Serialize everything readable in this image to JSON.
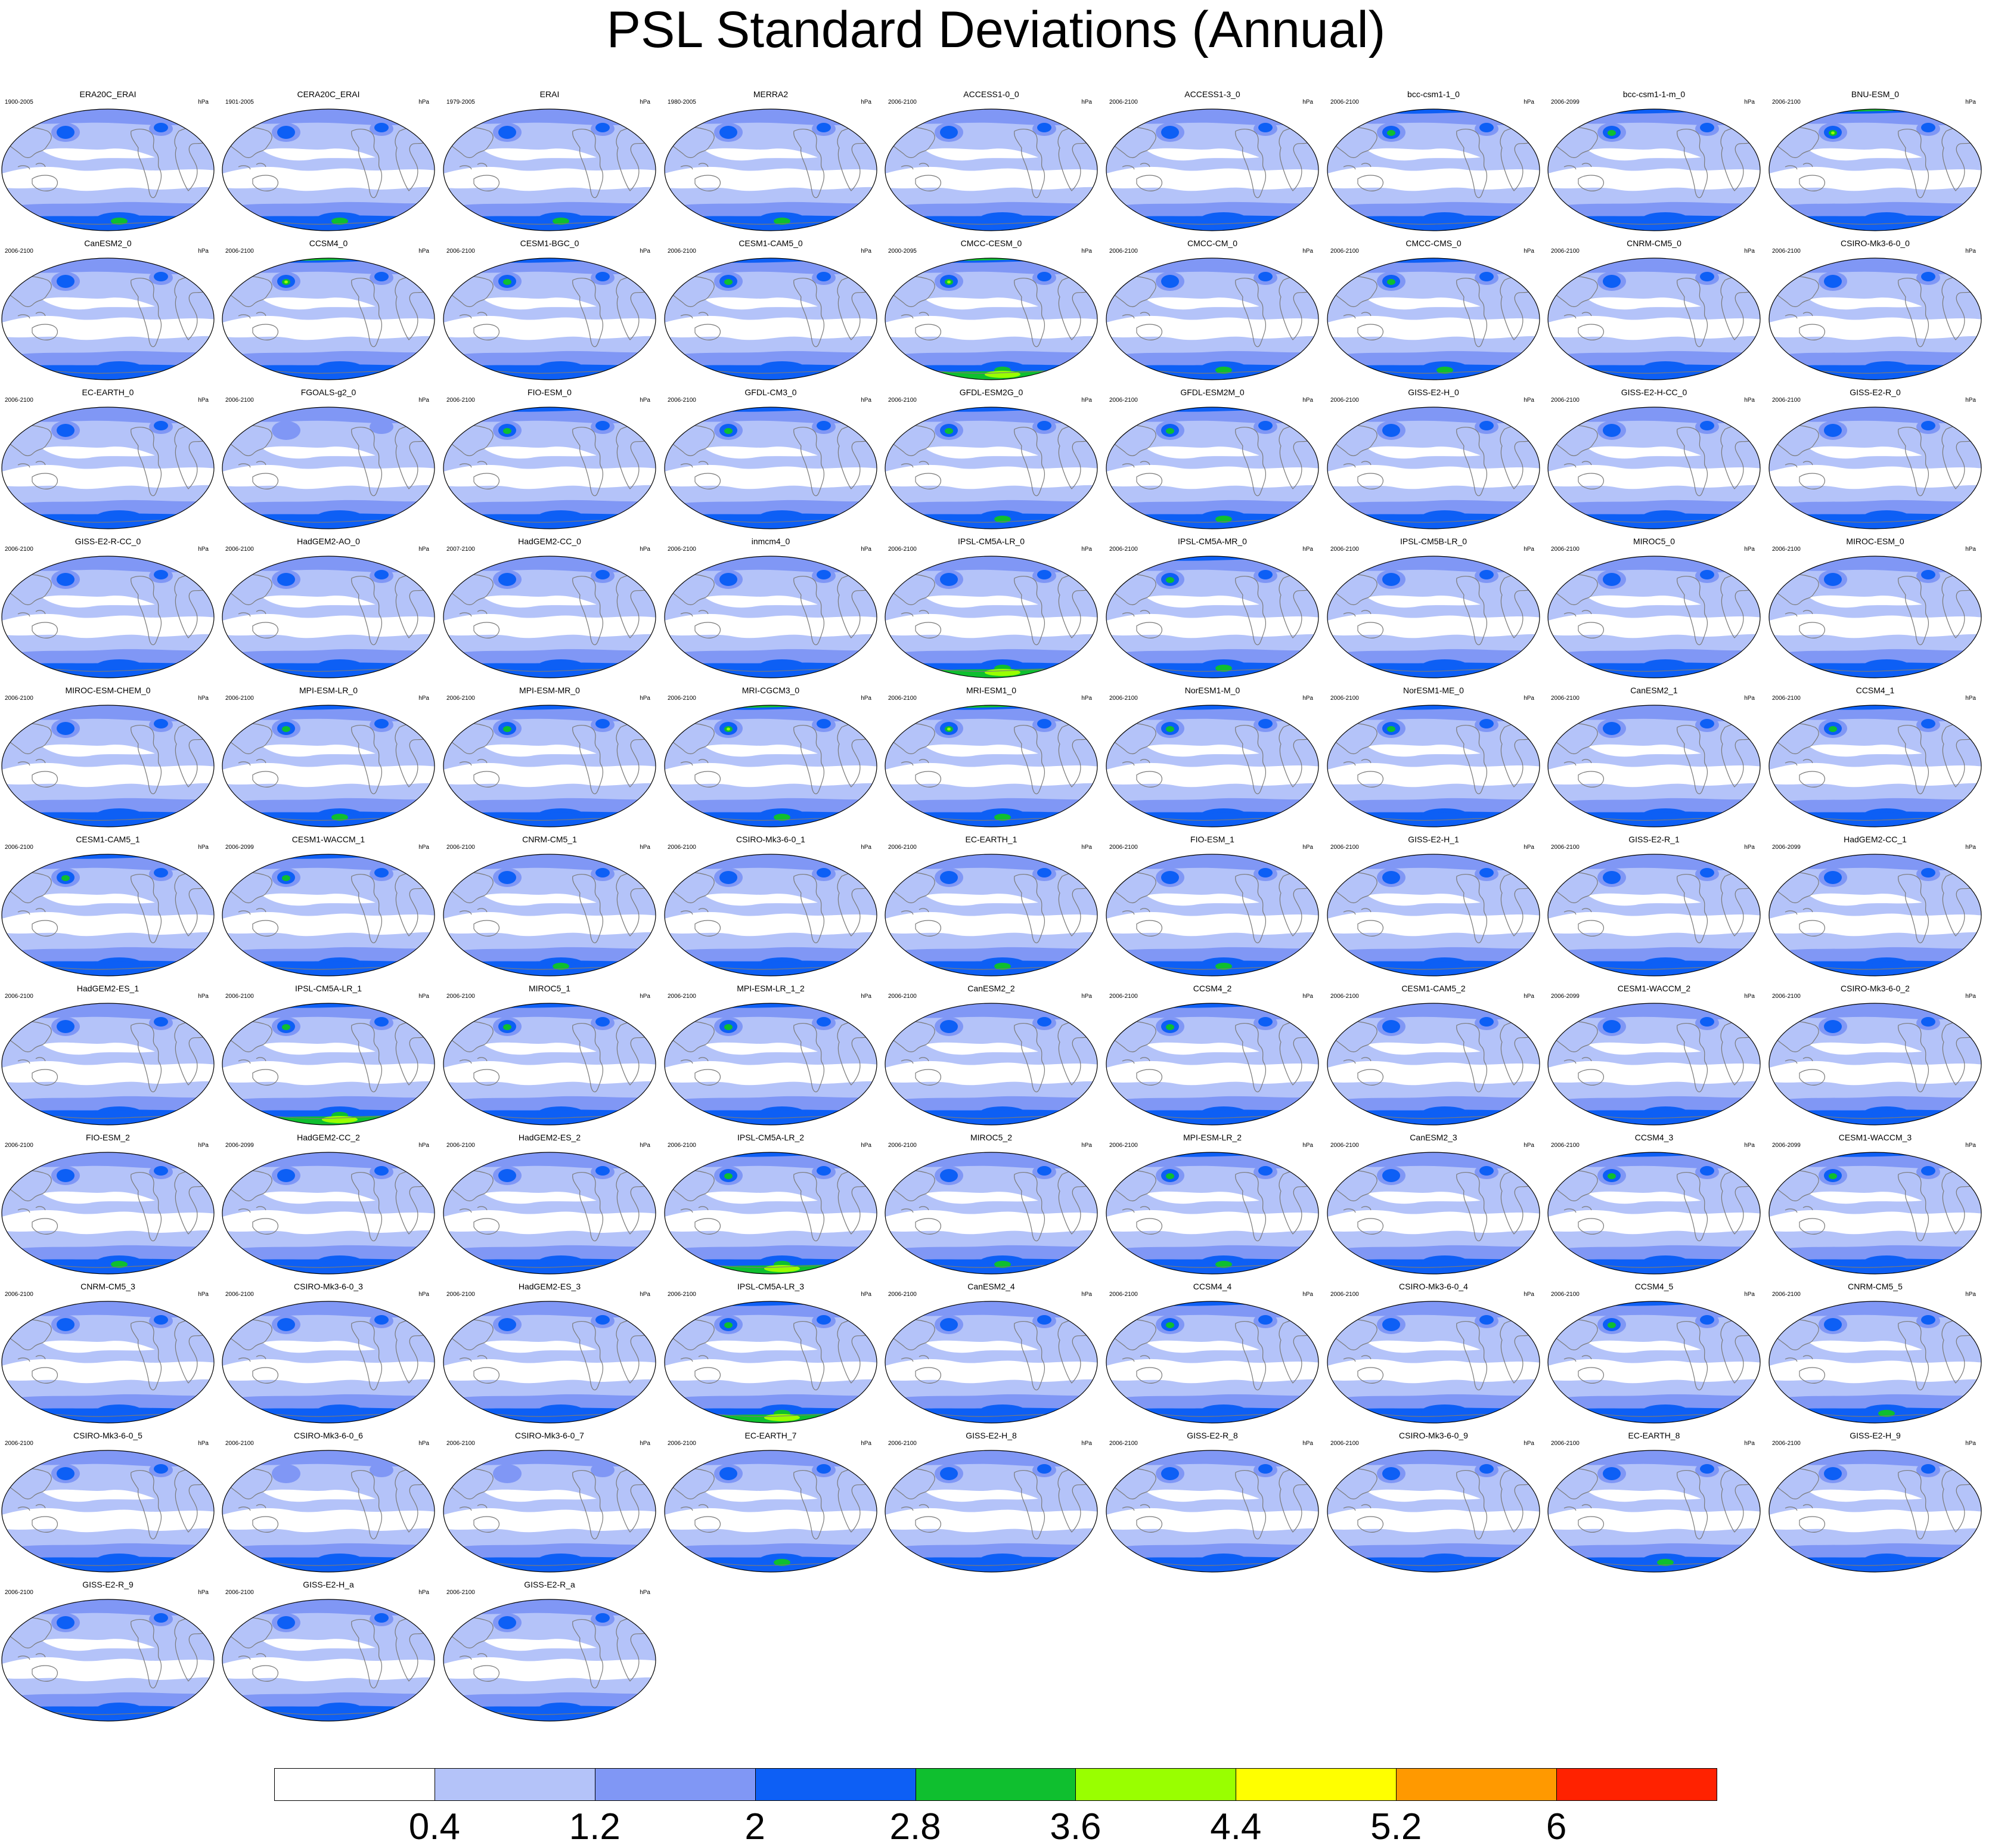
{
  "title": "PSL Standard Deviations (Annual)",
  "units": "hPa",
  "colorbar": {
    "colors": [
      "#ffffff",
      "#b4c3f9",
      "#8097f5",
      "#0d5ff5",
      "#0fbf2f",
      "#99ff00",
      "#ffff00",
      "#ff9900",
      "#ff2200"
    ],
    "labels": [
      "0.4",
      "1.2",
      "2",
      "2.8",
      "3.6",
      "4.4",
      "5.2",
      "6"
    ]
  },
  "panels": [
    {
      "name": "ERA20C_ERAI",
      "years": "1900-2005",
      "nh": 2,
      "sh": 3
    },
    {
      "name": "CERA20C_ERAI",
      "years": "1901-2005",
      "nh": 2,
      "sh": 3
    },
    {
      "name": "ERAI",
      "years": "1979-2005",
      "nh": 2,
      "sh": 3
    },
    {
      "name": "MERRA2",
      "years": "1980-2005",
      "nh": 2,
      "sh": 3
    },
    {
      "name": "ACCESS1-0_0",
      "years": "2006-2100",
      "nh": 2,
      "sh": 2
    },
    {
      "name": "ACCESS1-3_0",
      "years": "2006-2100",
      "nh": 2,
      "sh": 2
    },
    {
      "name": "bcc-csm1-1_0",
      "years": "2006-2100",
      "nh": 3,
      "sh": 2
    },
    {
      "name": "bcc-csm1-1-m_0",
      "years": "2006-2099",
      "nh": 3,
      "sh": 2
    },
    {
      "name": "BNU-ESM_0",
      "years": "2006-2100",
      "nh": 4,
      "sh": 2
    },
    {
      "name": "CanESM2_0",
      "years": "2006-2100",
      "nh": 2,
      "sh": 2
    },
    {
      "name": "CCSM4_0",
      "years": "2006-2100",
      "nh": 4,
      "sh": 2
    },
    {
      "name": "CESM1-BGC_0",
      "years": "2006-2100",
      "nh": 3,
      "sh": 2
    },
    {
      "name": "CESM1-CAM5_0",
      "years": "2006-2100",
      "nh": 3,
      "sh": 2
    },
    {
      "name": "CMCC-CESM_0",
      "years": "2000-2095",
      "nh": 4,
      "sh": 4
    },
    {
      "name": "CMCC-CM_0",
      "years": "2006-2100",
      "nh": 2,
      "sh": 3
    },
    {
      "name": "CMCC-CMS_0",
      "years": "2006-2100",
      "nh": 3,
      "sh": 3
    },
    {
      "name": "CNRM-CM5_0",
      "years": "2006-2100",
      "nh": 2,
      "sh": 2
    },
    {
      "name": "CSIRO-Mk3-6-0_0",
      "years": "2006-2100",
      "nh": 2,
      "sh": 2
    },
    {
      "name": "EC-EARTH_0",
      "years": "2006-2100",
      "nh": 2,
      "sh": 2
    },
    {
      "name": "FGOALS-g2_0",
      "years": "2006-2100",
      "nh": 1,
      "sh": 1
    },
    {
      "name": "FIO-ESM_0",
      "years": "2006-2100",
      "nh": 3,
      "sh": 2
    },
    {
      "name": "GFDL-CM3_0",
      "years": "2006-2100",
      "nh": 3,
      "sh": 2
    },
    {
      "name": "GFDL-ESM2G_0",
      "years": "2006-2100",
      "nh": 3,
      "sh": 3
    },
    {
      "name": "GFDL-ESM2M_0",
      "years": "2006-2100",
      "nh": 3,
      "sh": 3
    },
    {
      "name": "GISS-E2-H_0",
      "years": "2006-2100",
      "nh": 2,
      "sh": 2
    },
    {
      "name": "GISS-E2-H-CC_0",
      "years": "2006-2100",
      "nh": 2,
      "sh": 2
    },
    {
      "name": "GISS-E2-R_0",
      "years": "2006-2100",
      "nh": 2,
      "sh": 2
    },
    {
      "name": "GISS-E2-R-CC_0",
      "years": "2006-2100",
      "nh": 2,
      "sh": 1
    },
    {
      "name": "HadGEM2-AO_0",
      "years": "2006-2100",
      "nh": 2,
      "sh": 1
    },
    {
      "name": "HadGEM2-CC_0",
      "years": "2007-2100",
      "nh": 2,
      "sh": 2
    },
    {
      "name": "inmcm4_0",
      "years": "2006-2100",
      "nh": 2,
      "sh": 1
    },
    {
      "name": "IPSL-CM5A-LR_0",
      "years": "2006-2100",
      "nh": 2,
      "sh": 4
    },
    {
      "name": "IPSL-CM5A-MR_0",
      "years": "2006-2100",
      "nh": 3,
      "sh": 3
    },
    {
      "name": "IPSL-CM5B-LR_0",
      "years": "2006-2100",
      "nh": 2,
      "sh": 2
    },
    {
      "name": "MIROC5_0",
      "years": "2006-2100",
      "nh": 2,
      "sh": 2
    },
    {
      "name": "MIROC-ESM_0",
      "years": "2006-2100",
      "nh": 2,
      "sh": 1
    },
    {
      "name": "MIROC-ESM-CHEM_0",
      "years": "2006-2100",
      "nh": 2,
      "sh": 1
    },
    {
      "name": "MPI-ESM-LR_0",
      "years": "2006-2100",
      "nh": 3,
      "sh": 3
    },
    {
      "name": "MPI-ESM-MR_0",
      "years": "2006-2100",
      "nh": 3,
      "sh": 2
    },
    {
      "name": "MRI-CGCM3_0",
      "years": "2006-2100",
      "nh": 4,
      "sh": 3
    },
    {
      "name": "MRI-ESM1_0",
      "years": "2006-2100",
      "nh": 4,
      "sh": 3
    },
    {
      "name": "NorESM1-M_0",
      "years": "2006-2100",
      "nh": 3,
      "sh": 2
    },
    {
      "name": "NorESM1-ME_0",
      "years": "2006-2100",
      "nh": 3,
      "sh": 2
    },
    {
      "name": "CanESM2_1",
      "years": "2006-2100",
      "nh": 2,
      "sh": 2
    },
    {
      "name": "CCSM4_1",
      "years": "2006-2100",
      "nh": 3,
      "sh": 2
    },
    {
      "name": "CESM1-CAM5_1",
      "years": "2006-2100",
      "nh": 3,
      "sh": 2
    },
    {
      "name": "CESM1-WACCM_1",
      "years": "2006-2099",
      "nh": 3,
      "sh": 2
    },
    {
      "name": "CNRM-CM5_1",
      "years": "2006-2100",
      "nh": 2,
      "sh": 3
    },
    {
      "name": "CSIRO-Mk3-6-0_1",
      "years": "2006-2100",
      "nh": 2,
      "sh": 2
    },
    {
      "name": "EC-EARTH_1",
      "years": "2006-2100",
      "nh": 2,
      "sh": 3
    },
    {
      "name": "FIO-ESM_1",
      "years": "2006-2100",
      "nh": 2,
      "sh": 3
    },
    {
      "name": "GISS-E2-H_1",
      "years": "2006-2100",
      "nh": 2,
      "sh": 2
    },
    {
      "name": "GISS-E2-R_1",
      "years": "2006-2100",
      "nh": 2,
      "sh": 2
    },
    {
      "name": "HadGEM2-CC_1",
      "years": "2006-2099",
      "nh": 2,
      "sh": 2
    },
    {
      "name": "HadGEM2-ES_1",
      "years": "2006-2100",
      "nh": 2,
      "sh": 2
    },
    {
      "name": "IPSL-CM5A-LR_1",
      "years": "2006-2100",
      "nh": 3,
      "sh": 4
    },
    {
      "name": "MIROC5_1",
      "years": "2006-2100",
      "nh": 3,
      "sh": 2
    },
    {
      "name": "MPI-ESM-LR_1_2",
      "years": "2006-2100",
      "nh": 3,
      "sh": 2
    },
    {
      "name": "CanESM2_2",
      "years": "2006-2100",
      "nh": 2,
      "sh": 2
    },
    {
      "name": "CCSM4_2",
      "years": "2006-2100",
      "nh": 3,
      "sh": 2
    },
    {
      "name": "CESM1-CAM5_2",
      "years": "2006-2100",
      "nh": 2,
      "sh": 2
    },
    {
      "name": "CESM1-WACCM_2",
      "years": "2006-2099",
      "nh": 2,
      "sh": 2
    },
    {
      "name": "CSIRO-Mk3-6-0_2",
      "years": "2006-2100",
      "nh": 2,
      "sh": 2
    },
    {
      "name": "FIO-ESM_2",
      "years": "2006-2100",
      "nh": 2,
      "sh": 3
    },
    {
      "name": "HadGEM2-CC_2",
      "years": "2006-2099",
      "nh": 2,
      "sh": 2
    },
    {
      "name": "HadGEM2-ES_2",
      "years": "2006-2100",
      "nh": 2,
      "sh": 2
    },
    {
      "name": "IPSL-CM5A-LR_2",
      "years": "2006-2100",
      "nh": 3,
      "sh": 4
    },
    {
      "name": "MIROC5_2",
      "years": "2006-2100",
      "nh": 2,
      "sh": 3
    },
    {
      "name": "MPI-ESM-LR_2",
      "years": "2006-2100",
      "nh": 3,
      "sh": 3
    },
    {
      "name": "CanESM2_3",
      "years": "2006-2100",
      "nh": 2,
      "sh": 2
    },
    {
      "name": "CCSM4_3",
      "years": "2006-2100",
      "nh": 3,
      "sh": 2
    },
    {
      "name": "CESM1-WACCM_3",
      "years": "2006-2099",
      "nh": 3,
      "sh": 2
    },
    {
      "name": "CNRM-CM5_3",
      "years": "2006-2100",
      "nh": 2,
      "sh": 2
    },
    {
      "name": "CSIRO-Mk3-6-0_3",
      "years": "2006-2100",
      "nh": 2,
      "sh": 1
    },
    {
      "name": "HadGEM2-ES_3",
      "years": "2006-2100",
      "nh": 2,
      "sh": 2
    },
    {
      "name": "IPSL-CM5A-LR_3",
      "years": "2006-2100",
      "nh": 3,
      "sh": 4
    },
    {
      "name": "CanESM2_4",
      "years": "2006-2100",
      "nh": 2,
      "sh": 2
    },
    {
      "name": "CCSM4_4",
      "years": "2006-2100",
      "nh": 3,
      "sh": 2
    },
    {
      "name": "CSIRO-Mk3-6-0_4",
      "years": "2006-2100",
      "nh": 2,
      "sh": 2
    },
    {
      "name": "CCSM4_5",
      "years": "2006-2100",
      "nh": 3,
      "sh": 2
    },
    {
      "name": "CNRM-CM5_5",
      "years": "2006-2100",
      "nh": 2,
      "sh": 3
    },
    {
      "name": "CSIRO-Mk3-6-0_5",
      "years": "2006-2100",
      "nh": 2,
      "sh": 1
    },
    {
      "name": "CSIRO-Mk3-6-0_6",
      "years": "2006-2100",
      "nh": 1,
      "sh": 1
    },
    {
      "name": "CSIRO-Mk3-6-0_7",
      "years": "2006-2100",
      "nh": 1,
      "sh": 1
    },
    {
      "name": "EC-EARTH_7",
      "years": "2006-2100",
      "nh": 2,
      "sh": 3
    },
    {
      "name": "GISS-E2-H_8",
      "years": "2006-2100",
      "nh": 2,
      "sh": 1
    },
    {
      "name": "GISS-E2-R_8",
      "years": "2006-2100",
      "nh": 2,
      "sh": 2
    },
    {
      "name": "CSIRO-Mk3-6-0_9",
      "years": "2006-2100",
      "nh": 2,
      "sh": 2
    },
    {
      "name": "EC-EARTH_8",
      "years": "2006-2100",
      "nh": 2,
      "sh": 3
    },
    {
      "name": "GISS-E2-H_9",
      "years": "2006-2100",
      "nh": 2,
      "sh": 2
    },
    {
      "name": "GISS-E2-R_9",
      "years": "2006-2100",
      "nh": 2,
      "sh": 2
    },
    {
      "name": "GISS-E2-H_a",
      "years": "2006-2100",
      "nh": 2,
      "sh": 1
    },
    {
      "name": "GISS-E2-R_a",
      "years": "2006-2100",
      "nh": 2,
      "sh": 2
    }
  ]
}
